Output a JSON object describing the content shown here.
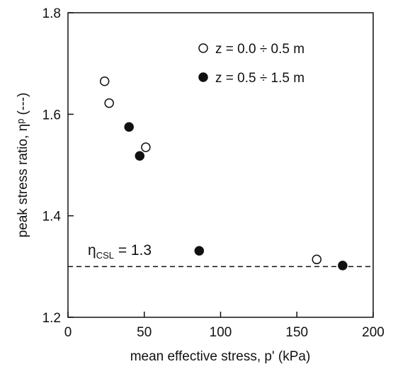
{
  "chart_data": {
    "type": "scatter",
    "xlabel": "mean effective stress, p' (kPa)",
    "ylabel": "peak stress ratio, ηᵖ (---)",
    "xlim": [
      0,
      200
    ],
    "ylim": [
      1.2,
      1.8
    ],
    "x_ticks": [
      0,
      50,
      100,
      150,
      200
    ],
    "y_ticks": [
      1.2,
      1.4,
      1.6,
      1.8
    ],
    "x_tick_labels": [
      "0",
      "50",
      "100",
      "150",
      "200"
    ],
    "y_tick_labels": [
      "1.2",
      "1.4",
      "1.6",
      "1.8"
    ],
    "grid": false,
    "legend_position": "top-right",
    "series": [
      {
        "name": "z = 0.0 ÷ 0.5 m",
        "marker": "open-circle",
        "color": "#111111",
        "points": [
          {
            "x": 24,
            "y": 1.665
          },
          {
            "x": 27,
            "y": 1.622
          },
          {
            "x": 51,
            "y": 1.535
          },
          {
            "x": 163,
            "y": 1.314
          }
        ]
      },
      {
        "name": "z = 0.5 ÷ 1.5 m",
        "marker": "filled-circle",
        "color": "#111111",
        "points": [
          {
            "x": 40,
            "y": 1.575
          },
          {
            "x": 47,
            "y": 1.518
          },
          {
            "x": 86,
            "y": 1.331
          },
          {
            "x": 180,
            "y": 1.302
          }
        ]
      }
    ],
    "reference_line": {
      "y": 1.3,
      "style": "dashed",
      "label_symbol": "η",
      "label_subscript": "CSL",
      "label_value": " = 1.3"
    }
  }
}
